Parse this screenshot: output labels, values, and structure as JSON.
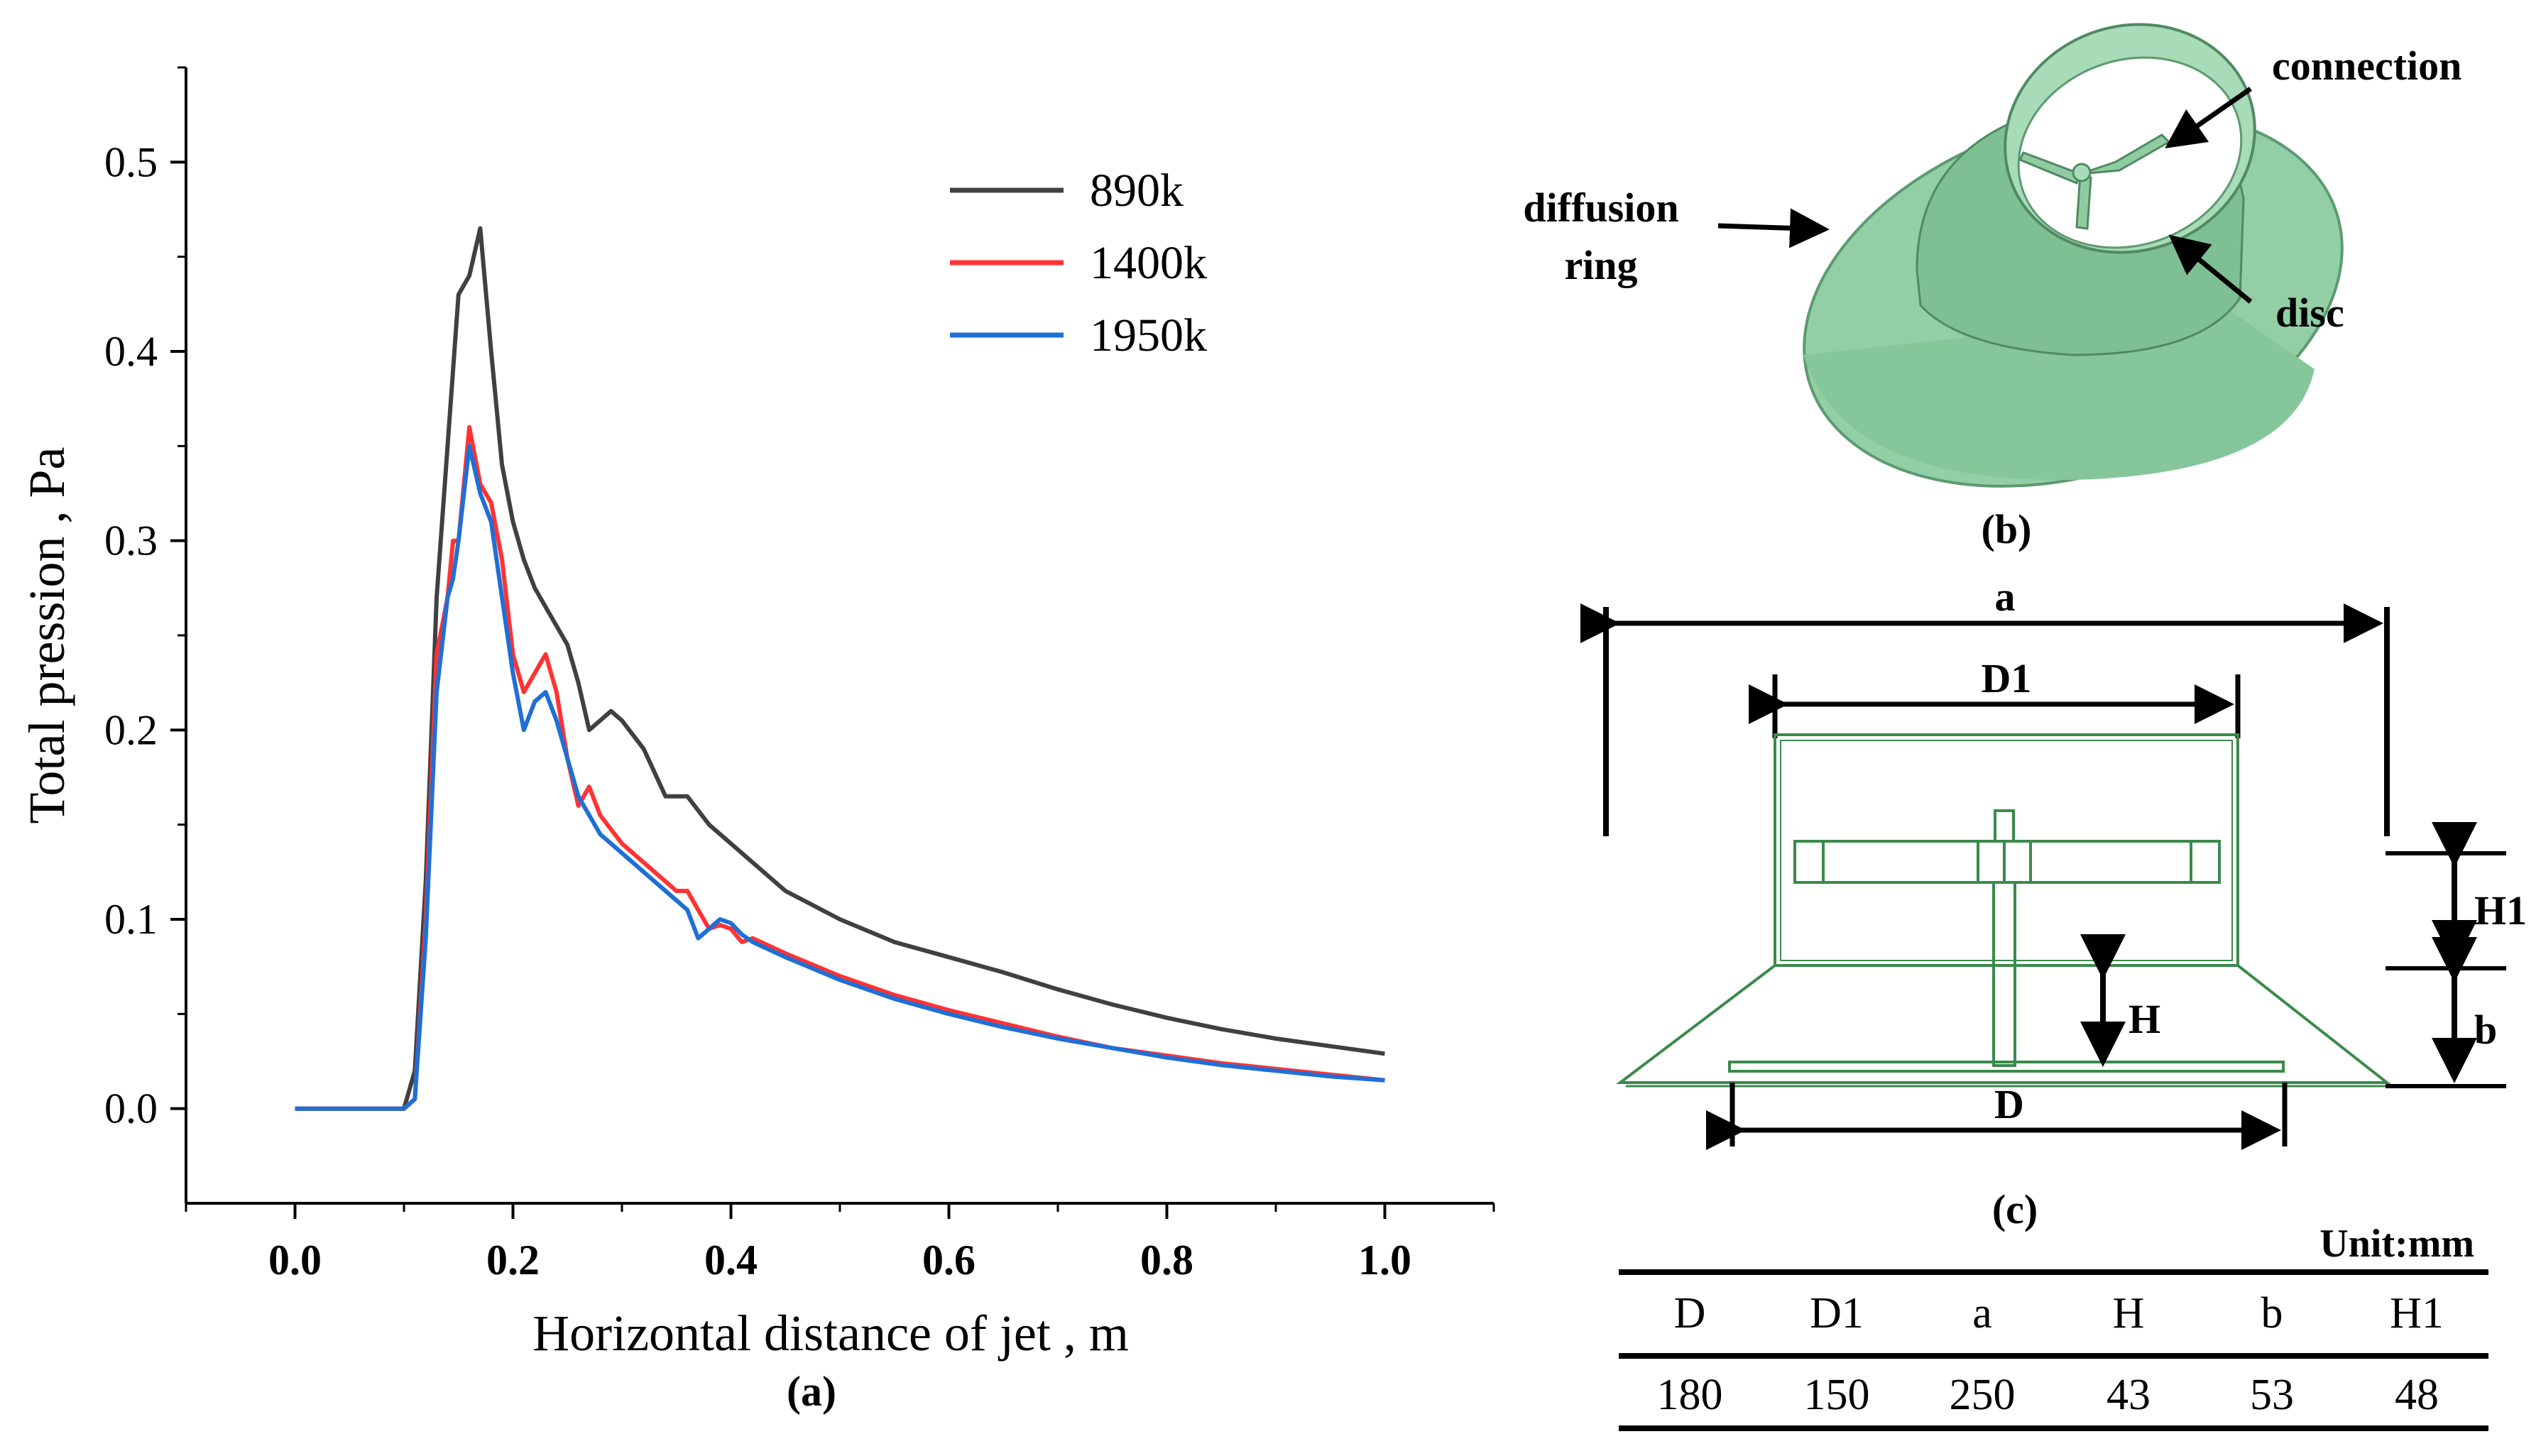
{
  "chart_data": {
    "type": "line",
    "panel_label": "(a)",
    "xlabel": "Horizontal distance of jet , m",
    "ylabel": "Total pression , Pa",
    "xlim": [
      -0.1,
      1.1
    ],
    "ylim": [
      -0.05,
      0.55
    ],
    "xticks": [
      "0.0",
      "0.2",
      "0.4",
      "0.6",
      "0.8",
      "1.0"
    ],
    "yticks": [
      "0.0",
      "0.1",
      "0.2",
      "0.3",
      "0.4",
      "0.5"
    ],
    "legend_position": "top-right",
    "series": [
      {
        "name": "890k",
        "color": "#404040",
        "x": [
          0.0,
          0.09,
          0.1,
          0.11,
          0.12,
          0.13,
          0.14,
          0.15,
          0.16,
          0.17,
          0.18,
          0.19,
          0.2,
          0.21,
          0.22,
          0.23,
          0.24,
          0.25,
          0.26,
          0.27,
          0.28,
          0.29,
          0.3,
          0.32,
          0.34,
          0.36,
          0.38,
          0.4,
          0.42,
          0.45,
          0.5,
          0.55,
          0.6,
          0.65,
          0.7,
          0.75,
          0.8,
          0.85,
          0.9,
          0.95,
          1.0
        ],
        "y": [
          0.0,
          0.0,
          0.0,
          0.02,
          0.12,
          0.27,
          0.35,
          0.43,
          0.44,
          0.465,
          0.4,
          0.34,
          0.31,
          0.29,
          0.275,
          0.265,
          0.255,
          0.245,
          0.225,
          0.2,
          0.205,
          0.21,
          0.205,
          0.19,
          0.165,
          0.165,
          0.15,
          0.14,
          0.13,
          0.115,
          0.1,
          0.088,
          0.08,
          0.072,
          0.063,
          0.055,
          0.048,
          0.042,
          0.037,
          0.033,
          0.029
        ]
      },
      {
        "name": "1400k",
        "color": "#ff3333",
        "x": [
          0.0,
          0.09,
          0.1,
          0.11,
          0.12,
          0.13,
          0.14,
          0.145,
          0.15,
          0.16,
          0.17,
          0.18,
          0.19,
          0.2,
          0.21,
          0.22,
          0.23,
          0.24,
          0.25,
          0.26,
          0.27,
          0.28,
          0.3,
          0.33,
          0.35,
          0.36,
          0.37,
          0.38,
          0.39,
          0.4,
          0.41,
          0.42,
          0.45,
          0.5,
          0.55,
          0.6,
          0.65,
          0.7,
          0.75,
          0.8,
          0.85,
          0.9,
          0.95,
          1.0
        ],
        "y": [
          0.0,
          0.0,
          0.0,
          0.005,
          0.1,
          0.24,
          0.27,
          0.3,
          0.3,
          0.36,
          0.33,
          0.32,
          0.29,
          0.24,
          0.22,
          0.23,
          0.24,
          0.22,
          0.185,
          0.16,
          0.17,
          0.155,
          0.14,
          0.125,
          0.115,
          0.115,
          0.105,
          0.095,
          0.097,
          0.095,
          0.088,
          0.09,
          0.082,
          0.07,
          0.06,
          0.052,
          0.045,
          0.038,
          0.032,
          0.028,
          0.024,
          0.021,
          0.018,
          0.015
        ]
      },
      {
        "name": "1950k",
        "color": "#1f6fd6",
        "x": [
          0.0,
          0.09,
          0.1,
          0.11,
          0.12,
          0.13,
          0.14,
          0.145,
          0.15,
          0.16,
          0.17,
          0.18,
          0.19,
          0.2,
          0.21,
          0.22,
          0.23,
          0.24,
          0.25,
          0.26,
          0.27,
          0.28,
          0.3,
          0.33,
          0.35,
          0.36,
          0.37,
          0.38,
          0.39,
          0.4,
          0.41,
          0.42,
          0.45,
          0.5,
          0.55,
          0.6,
          0.65,
          0.7,
          0.75,
          0.8,
          0.85,
          0.9,
          0.95,
          1.0
        ],
        "y": [
          0.0,
          0.0,
          0.0,
          0.005,
          0.09,
          0.22,
          0.27,
          0.28,
          0.3,
          0.35,
          0.325,
          0.31,
          0.27,
          0.23,
          0.2,
          0.215,
          0.22,
          0.205,
          0.185,
          0.165,
          0.155,
          0.145,
          0.135,
          0.12,
          0.11,
          0.105,
          0.09,
          0.095,
          0.1,
          0.098,
          0.092,
          0.088,
          0.08,
          0.068,
          0.058,
          0.05,
          0.043,
          0.037,
          0.032,
          0.027,
          0.023,
          0.02,
          0.017,
          0.015
        ]
      }
    ]
  },
  "figure_b": {
    "label": "(b)",
    "callouts": {
      "connection": "connection",
      "diffusion_line1": "diffusion",
      "diffusion_line2": "ring",
      "disc": "disc"
    },
    "fill_color": "#92cfa6",
    "stroke_color": "#4f8a62"
  },
  "figure_c": {
    "label": "(c)",
    "dims": {
      "a": "a",
      "D1": "D1",
      "H1": "H1",
      "H": "H",
      "b": "b",
      "D": "D"
    },
    "line_color": "#3a8a4c"
  },
  "table": {
    "unit": "Unit:mm",
    "headers": [
      "D",
      "D1",
      "a",
      "H",
      "b",
      "H1"
    ],
    "values": [
      "180",
      "150",
      "250",
      "43",
      "53",
      "48"
    ]
  }
}
